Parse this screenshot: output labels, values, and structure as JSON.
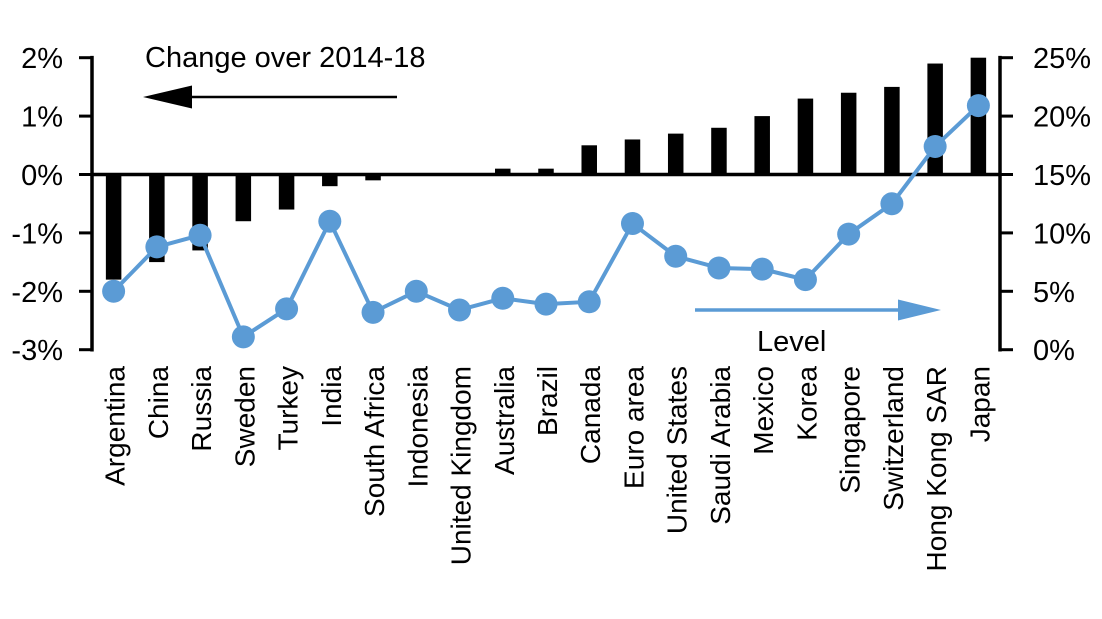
{
  "colors": {
    "bar_color": "#000000",
    "line_color": "#5b9bd5",
    "axis_color": "#000000",
    "text_color": "#000000",
    "background": "#ffffff"
  },
  "chart_data": {
    "type": "bar+line dual-axis combo",
    "categories": [
      "Argentina",
      "China",
      "Russia",
      "Sweden",
      "Turkey",
      "India",
      "South Africa",
      "Indonesia",
      "United Kingdom",
      "Australia",
      "Brazil",
      "Canada",
      "Euro area",
      "United States",
      "Saudi Arabia",
      "Mexico",
      "Korea",
      "Singapore",
      "Switzerland",
      "Hong Kong SAR",
      "Japan"
    ],
    "series": [
      {
        "name": "Change over 2014-18",
        "type": "bar",
        "axis": "left",
        "unit": "%",
        "values": [
          -1.8,
          -1.5,
          -1.3,
          -0.8,
          -0.6,
          -0.2,
          -0.1,
          0,
          0,
          0.1,
          0.1,
          0.5,
          0.6,
          0.7,
          0.8,
          1.0,
          1.3,
          1.4,
          1.5,
          1.9,
          2.0
        ]
      },
      {
        "name": "Level",
        "type": "line",
        "axis": "right",
        "unit": "%",
        "values": [
          5.0,
          8.8,
          9.8,
          1.1,
          3.5,
          11.0,
          3.2,
          5.0,
          3.4,
          4.4,
          3.9,
          4.1,
          10.8,
          8.0,
          7.0,
          6.9,
          6.0,
          9.9,
          12.5,
          17.4,
          20.9
        ]
      }
    ],
    "left_axis": {
      "tick_labels": [
        "2%",
        "1%",
        "0%",
        "-1%",
        "-2%",
        "-3%"
      ],
      "tick_values": [
        2,
        1,
        0,
        -1,
        -2,
        -3
      ],
      "range": [
        -3,
        2
      ]
    },
    "right_axis": {
      "tick_labels": [
        "25%",
        "20%",
        "15%",
        "10%",
        "5%",
        "0%"
      ],
      "tick_values": [
        25,
        20,
        15,
        10,
        5,
        0
      ],
      "range": [
        0,
        25
      ]
    },
    "annotations": {
      "left_series_label": "Change over 2014-18",
      "right_series_label": "Level",
      "left_arrow_direction": "left",
      "right_arrow_direction": "right"
    },
    "legend": "none",
    "grid": false
  }
}
